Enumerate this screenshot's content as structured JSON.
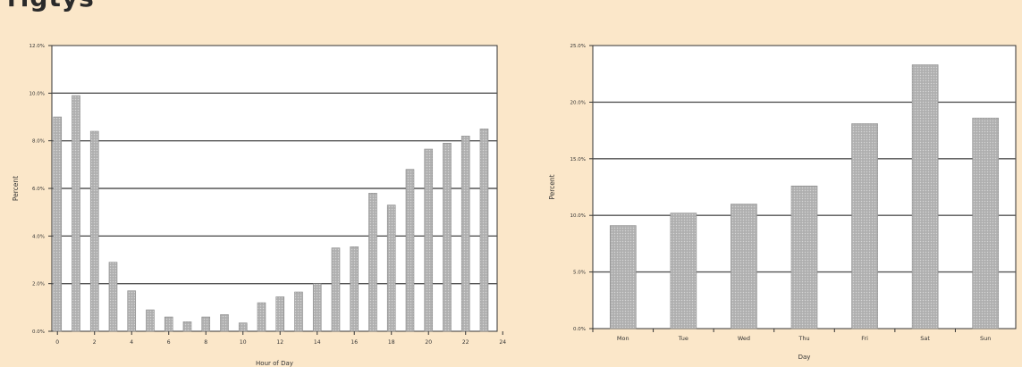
{
  "page": {
    "top_fragment": "rigtys"
  },
  "colors": {
    "background": "#fbe7c9",
    "plot_bg": "#ffffff",
    "bar": "#b5b5b5",
    "bar_edge": "#8a8a8a",
    "grid": "#555555"
  },
  "chart_data": [
    {
      "type": "bar",
      "xlabel": "Hour of Day",
      "ylabel": "Percent",
      "yticks": [
        "0.0%",
        "2.0%",
        "4.0%",
        "6.0%",
        "8.0%",
        "10.0%",
        "12.0%"
      ],
      "ylim": [
        0,
        12
      ],
      "xticks": [
        "0",
        "2",
        "4",
        "6",
        "8",
        "10",
        "12",
        "14",
        "16",
        "18",
        "20",
        "22",
        "24"
      ],
      "x": [
        0,
        1,
        2,
        3,
        4,
        5,
        6,
        7,
        8,
        9,
        10,
        11,
        12,
        13,
        14,
        15,
        16,
        17,
        18,
        19,
        20,
        21,
        22,
        23
      ],
      "values": [
        9.0,
        9.9,
        8.4,
        2.9,
        1.7,
        0.9,
        0.6,
        0.4,
        0.6,
        0.7,
        0.35,
        1.2,
        1.45,
        1.65,
        2.0,
        3.5,
        3.55,
        5.8,
        5.3,
        6.8,
        7.65,
        7.9,
        8.2,
        8.5
      ],
      "grid": "horizontal"
    },
    {
      "type": "bar",
      "xlabel": "Day",
      "ylabel": "Percent",
      "yticks": [
        "0.0%",
        "5.0%",
        "10.0%",
        "15.0%",
        "20.0%",
        "25.0%"
      ],
      "ylim": [
        0,
        25
      ],
      "categories": [
        "Mon",
        "Tue",
        "Wed",
        "Thu",
        "Fri",
        "Sat",
        "Sun"
      ],
      "values": [
        9.1,
        10.2,
        11.0,
        12.6,
        18.1,
        23.3,
        18.6
      ],
      "grid": "horizontal"
    }
  ]
}
